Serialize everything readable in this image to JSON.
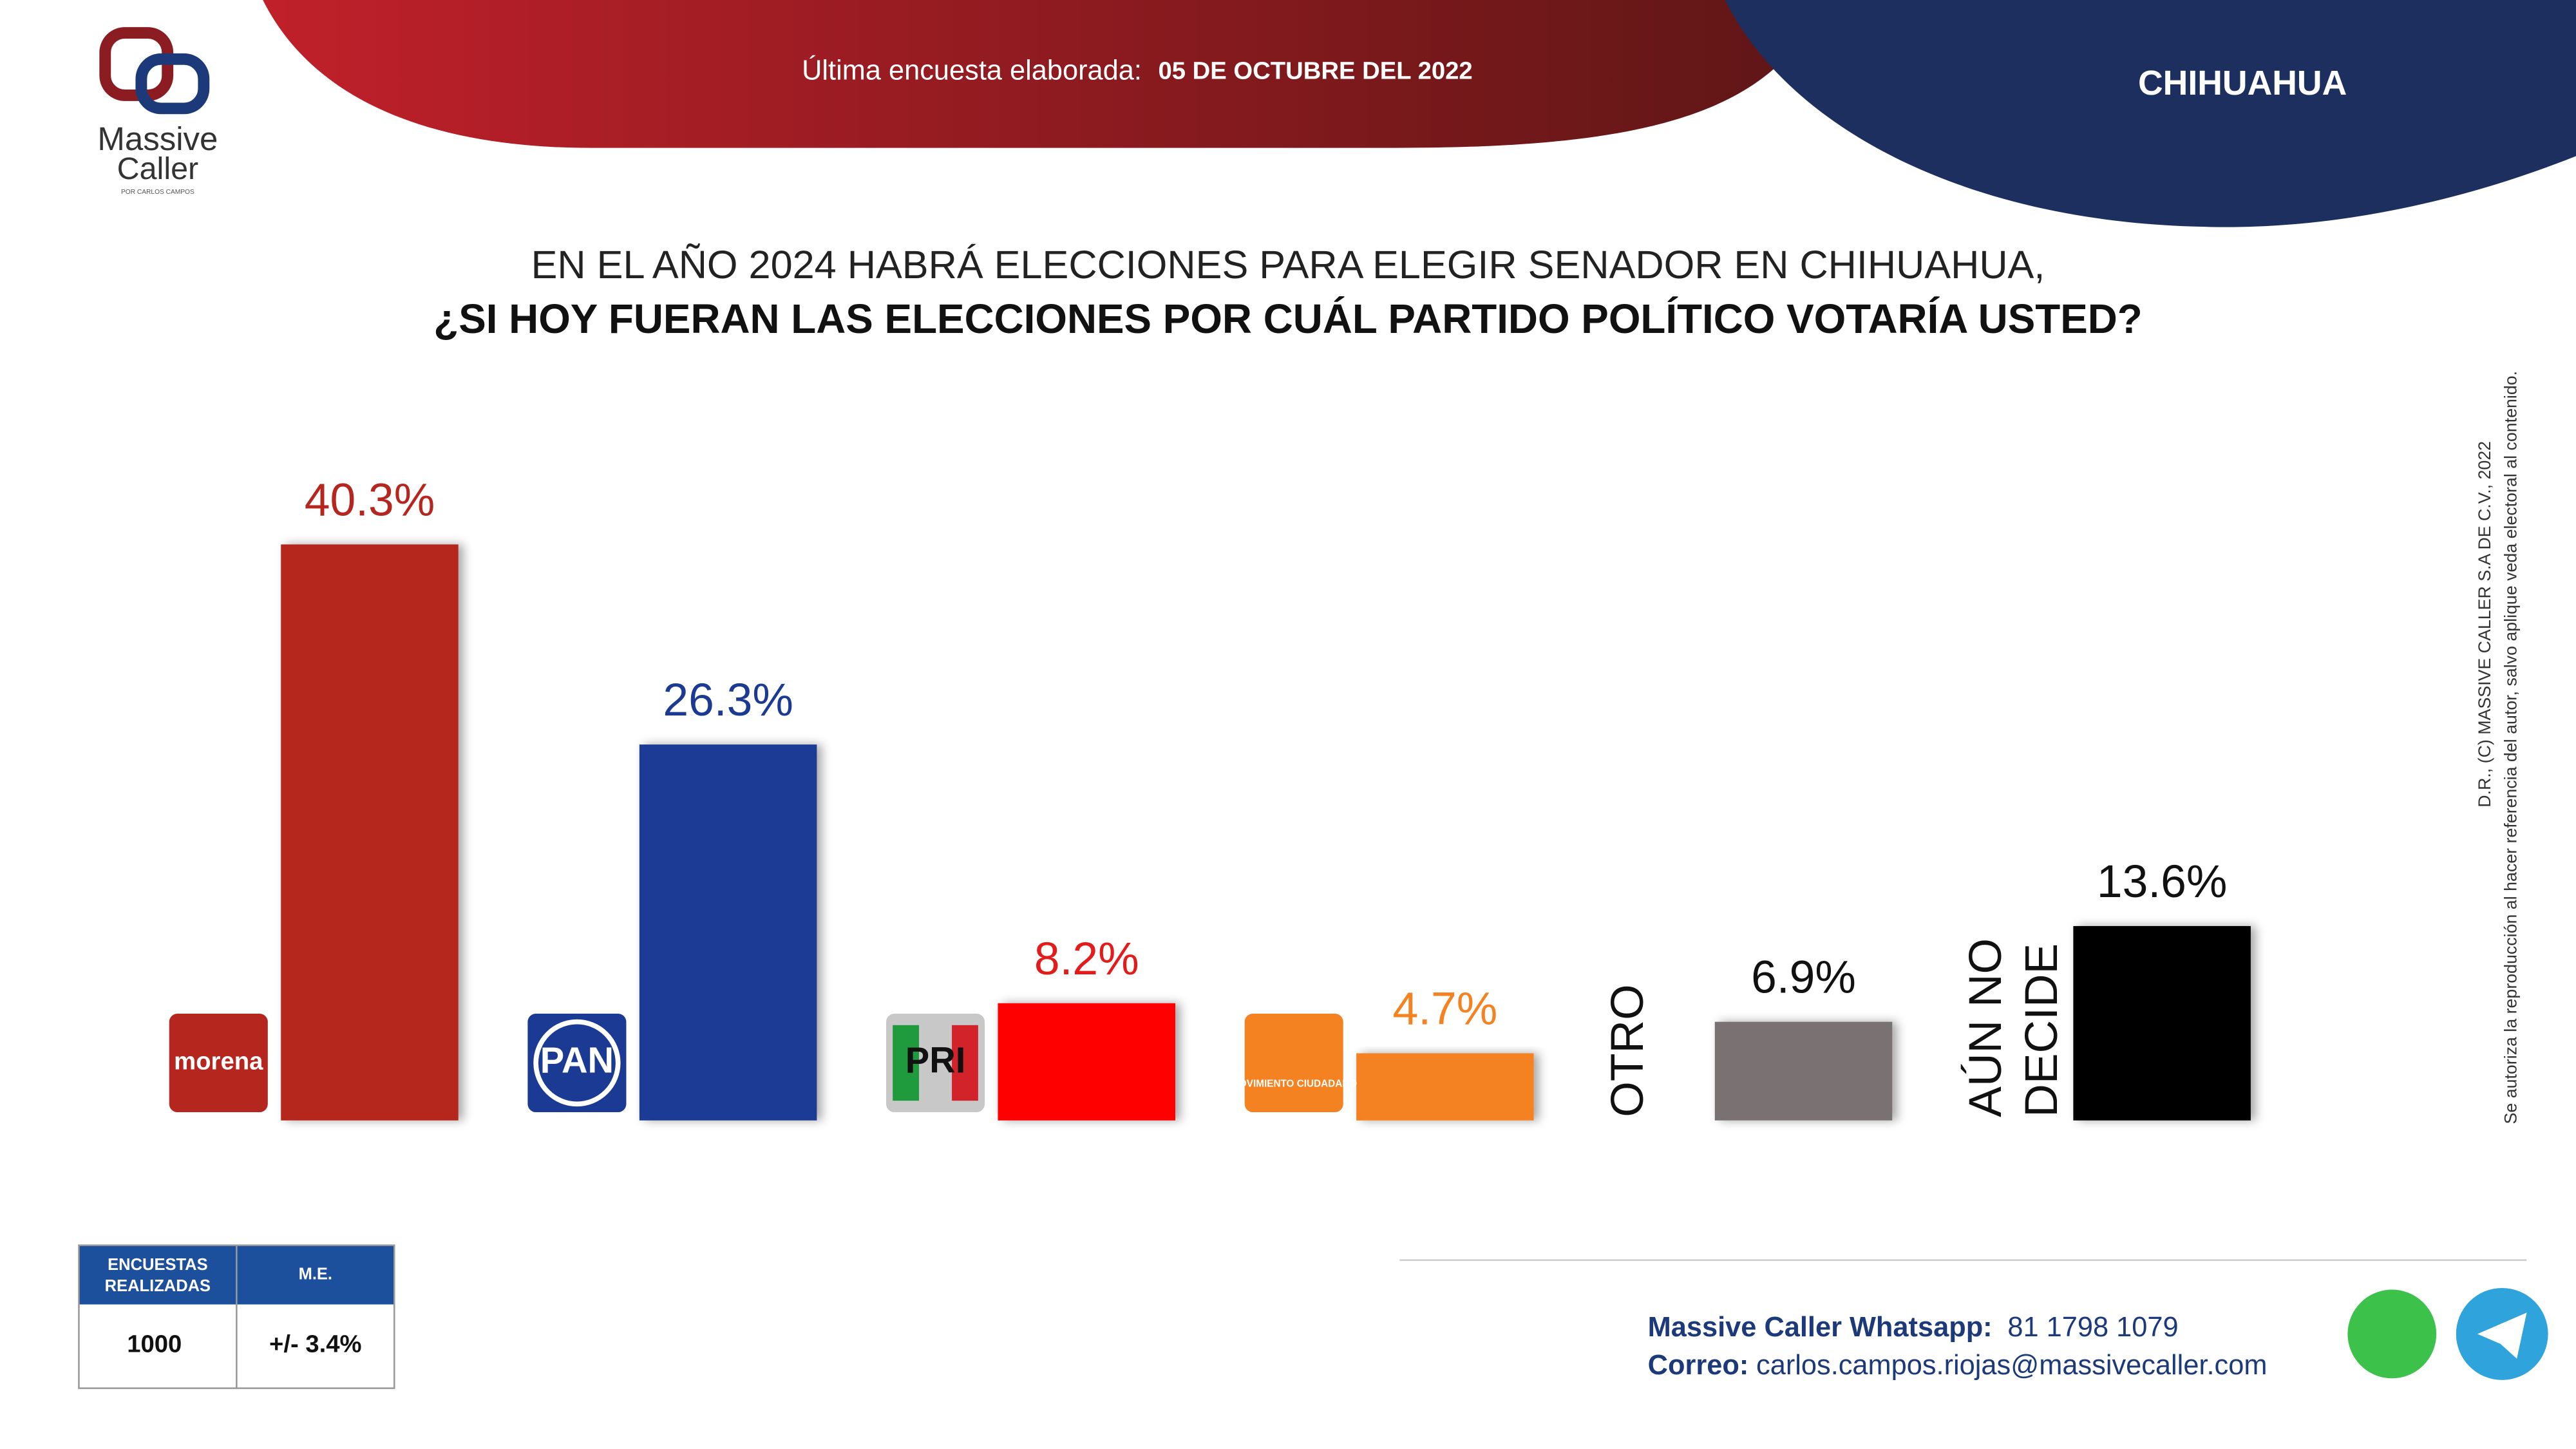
{
  "header": {
    "brand": "Massive",
    "brand2": "Caller",
    "brand_sub": "POR CARLOS CAMPOS",
    "date_label": "Última encuesta elaborada:",
    "date": "05 DE OCTUBRE DEL 2022",
    "region": "CHIHUAHUA"
  },
  "chart_data": {
    "type": "bar",
    "title": "EN EL AÑO 2024 HABRÁ ELECCIONES PARA ELEGIR SENADOR EN CHIHUAHUA,",
    "subtitle": "¿SI HOY FUERAN LAS ELECCIONES POR CUÁL PARTIDO POLÍTICO VOTARÍA USTED?",
    "categories": [
      "morena",
      "PAN",
      "PRI",
      "MOVIMIENTO CIUDADANO",
      "OTRO",
      "AÚN NO DECIDE"
    ],
    "values": [
      40.3,
      26.3,
      8.2,
      4.7,
      6.9,
      13.6
    ],
    "value_labels": [
      "40.3%",
      "26.3%",
      "8.2%",
      "4.7%",
      "6.9%",
      "13.6%"
    ],
    "colors": [
      "#b5261e",
      "#1b3a94",
      "#ff0000",
      "#f58220",
      "#7a7272",
      "#000000"
    ],
    "label_colors": [
      "#b5261e",
      "#1b3a94",
      "#e31b1b",
      "#f58220",
      "#111111",
      "#111111"
    ]
  },
  "table": {
    "header": [
      "ENCUESTAS REALIZADAS",
      "M.E."
    ],
    "rows": [
      [
        1000,
        "+/- 3.4%"
      ]
    ]
  },
  "side_note": [
    "D.R., (C) MASSIVE CALLER S.A DE C.V., 2022",
    "Se autoriza la reproducción al hacer referencia del autor, salvo aplique veda electoral al contenido."
  ],
  "footer": {
    "whatsapp_label": "Massive Caller Whatsapp:",
    "whatsapp": "81 1798 1079",
    "email_label": "Correo:",
    "email": "carlos.campos.riojas@massivecaller.com"
  }
}
